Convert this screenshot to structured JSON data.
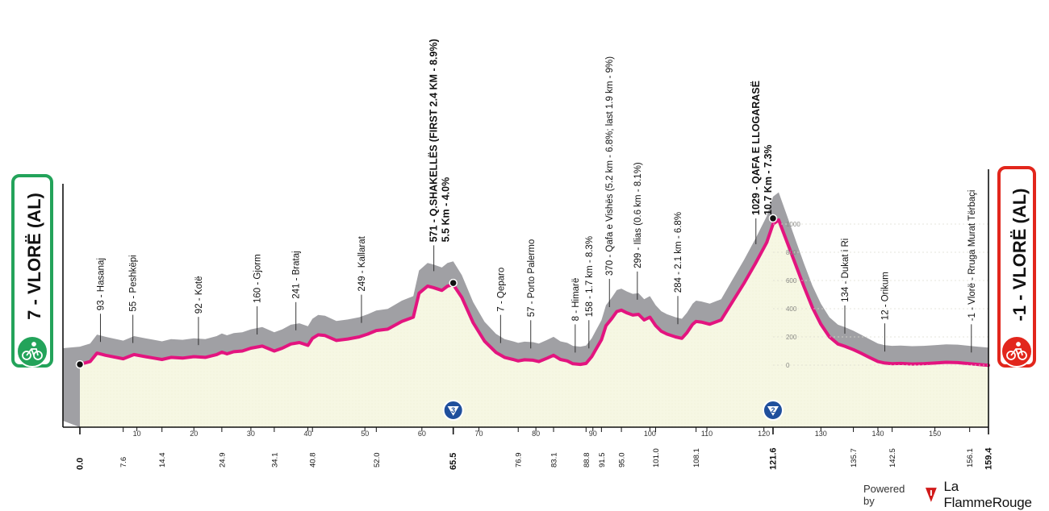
{
  "start_badge": {
    "label": "7 - VLORË (AL)",
    "color": "#23a35a"
  },
  "finish_badge": {
    "label": "-1 - VLORË (AL)",
    "color": "#e2261c"
  },
  "climb_badges": [
    "3",
    "2"
  ],
  "footer": {
    "powered_by": "Powered by",
    "brand": "La FlammeRouge"
  },
  "colors": {
    "profile_line": "#e3147f",
    "terrain": "#a0a0a4",
    "fill": "#f6f7e3"
  },
  "chart_data": {
    "type": "area",
    "title": "",
    "xlabel": "",
    "ylabel": "",
    "xlim": [
      0,
      159.4
    ],
    "ylim": [
      -300,
      1100
    ],
    "y_ticks": [
      0,
      200,
      400,
      600,
      800,
      1000
    ],
    "y_tick_labels": [
      "0",
      "200",
      "400",
      "600",
      "800",
      "1000"
    ],
    "x_ticks": [
      10,
      20,
      30,
      40,
      50,
      60,
      70,
      80,
      90,
      100,
      110,
      120,
      130,
      140,
      150
    ],
    "x_tick_labels": [
      "10",
      "20",
      "30",
      "40",
      "50",
      "60",
      "70",
      "80",
      "90",
      "100",
      "110",
      "120",
      "130",
      "140",
      "150"
    ],
    "x_marks": [
      {
        "km": 0.0,
        "label": "0.0",
        "bold": true
      },
      {
        "km": 7.6,
        "label": "7.6",
        "bold": false
      },
      {
        "km": 14.4,
        "label": "14.4",
        "bold": false
      },
      {
        "km": 24.9,
        "label": "24.9",
        "bold": false
      },
      {
        "km": 34.1,
        "label": "34.1",
        "bold": false
      },
      {
        "km": 40.8,
        "label": "40.8",
        "bold": false
      },
      {
        "km": 52.0,
        "label": "52.0",
        "bold": false
      },
      {
        "km": 65.5,
        "label": "65.5",
        "bold": true
      },
      {
        "km": 76.9,
        "label": "76.9",
        "bold": false
      },
      {
        "km": 83.1,
        "label": "83.1",
        "bold": false
      },
      {
        "km": 88.8,
        "label": "88.8",
        "bold": false
      },
      {
        "km": 91.5,
        "label": "91.5",
        "bold": false
      },
      {
        "km": 95.0,
        "label": "95.0",
        "bold": false
      },
      {
        "km": 101.0,
        "label": "101.0",
        "bold": false
      },
      {
        "km": 108.1,
        "label": "108.1",
        "bold": false
      },
      {
        "km": 121.6,
        "label": "121.6",
        "bold": true
      },
      {
        "km": 135.7,
        "label": "135.7",
        "bold": false
      },
      {
        "km": 142.5,
        "label": "142.5",
        "bold": false
      },
      {
        "km": 156.1,
        "label": "156.1",
        "bold": false
      },
      {
        "km": 159.4,
        "label": "159.4",
        "bold": true
      }
    ],
    "series": [
      {
        "x": [
          0,
          1.8,
          3,
          4.5,
          7.6,
          9.5,
          11.5,
          13,
          14.4,
          16,
          18,
          20,
          22,
          24,
          24.9,
          25.8,
          27,
          28.5,
          30,
          32,
          34.1,
          35.5,
          37,
          38.5,
          40,
          40.8,
          41.8,
          43,
          45,
          47,
          49,
          50.5,
          52,
          54,
          56.5,
          58.5,
          59.5,
          61,
          62,
          63.5,
          64.5,
          65.5,
          67,
          69,
          71,
          73,
          74.5,
          76,
          76.9,
          78,
          79.5,
          80.5,
          82,
          83.1,
          84.3,
          85.5,
          86.5,
          87.8,
          88.8,
          89.8,
          90.5,
          91.5,
          92.3,
          93.3,
          94.2,
          95.0,
          96,
          97,
          98,
          99,
          100,
          101.0,
          102,
          103,
          104.5,
          105.6,
          106.5,
          107.5,
          108.1,
          109,
          110.5,
          112.5,
          114.5,
          116.5,
          118.5,
          120.5,
          121.6,
          122.6,
          124,
          125.5,
          127,
          128.5,
          130,
          131.5,
          133,
          134.2,
          135.7,
          137,
          138.5,
          140,
          141.2,
          142.5,
          144,
          146,
          148,
          150,
          152,
          154,
          156.1,
          157.5,
          159.4
        ],
        "y": [
          5,
          25,
          85,
          70,
          45,
          75,
          60,
          50,
          40,
          55,
          50,
          60,
          55,
          75,
          92,
          80,
          95,
          100,
          120,
          135,
          100,
          120,
          150,
          160,
          140,
          190,
          215,
          210,
          175,
          185,
          200,
          220,
          245,
          255,
          310,
          340,
          510,
          560,
          550,
          530,
          560,
          571,
          480,
          300,
          170,
          90,
          55,
          40,
          30,
          38,
          35,
          25,
          50,
          70,
          40,
          30,
          10,
          5,
          12,
          60,
          110,
          180,
          280,
          330,
          380,
          390,
          370,
          355,
          360,
          320,
          340,
          280,
          240,
          220,
          200,
          190,
          230,
          290,
          310,
          305,
          290,
          320,
          450,
          580,
          720,
          870,
          1000,
          1029,
          880,
          720,
          560,
          410,
          290,
          200,
          150,
          134,
          110,
          85,
          55,
          25,
          15,
          10,
          12,
          8,
          10,
          15,
          20,
          18,
          10,
          5,
          -1
        ]
      }
    ],
    "waypoints": [
      {
        "km": 3.6,
        "label": "93 - Hasanaj",
        "bold": false
      },
      {
        "km": 9.3,
        "label": "55 - Peshkëpi",
        "bold": false
      },
      {
        "km": 20.8,
        "label": "92 - Kotë",
        "bold": false
      },
      {
        "km": 31.1,
        "label": "160 - Gjorm",
        "bold": false
      },
      {
        "km": 37.9,
        "label": "241 - Brataj",
        "bold": false
      },
      {
        "km": 49.4,
        "label": "249 - Kallarat",
        "bold": false
      },
      {
        "km": 62.1,
        "label": "571 - Q.SHAKELLËS (FIRST 2.4 KM - 8.9%)",
        "sub": "5.5 Km - 4.0%",
        "bold": true
      },
      {
        "km": 73.8,
        "label": "7 - Qeparo",
        "bold": false
      },
      {
        "km": 79.1,
        "label": "57 - Porto Palermo",
        "bold": false
      },
      {
        "km": 86.9,
        "label": "8 - Himarë",
        "bold": false
      },
      {
        "km": 89.3,
        "label": "158 - 1.7 km - 8.3%",
        "bold": false
      },
      {
        "km": 92.9,
        "label": "370 - Qafa e Vishës (5.2 km - 6.8%; last 1.9 km - 9%)",
        "bold": false
      },
      {
        "km": 97.8,
        "label": "299 - Ilias (0.6 km - 8.1%)",
        "bold": false
      },
      {
        "km": 104.9,
        "label": "284 - 2.1 km - 6.8%",
        "bold": false
      },
      {
        "km": 118.6,
        "label": "1029 - QAFA E LLOGARASË",
        "sub": "10.7 Km - 7.3%",
        "bold": true
      },
      {
        "km": 134.2,
        "label": "134 - Dukat i Ri",
        "bold": false
      },
      {
        "km": 141.2,
        "label": "12 - Orikum",
        "bold": false
      },
      {
        "km": 156.4,
        "label": "-1 - Vlorë - Rruga Murat Tërbaçi",
        "bold": false
      }
    ],
    "climbs": [
      {
        "km": 65.5,
        "category": "3"
      },
      {
        "km": 121.6,
        "category": "2"
      }
    ],
    "grid": false,
    "legend": "none"
  }
}
